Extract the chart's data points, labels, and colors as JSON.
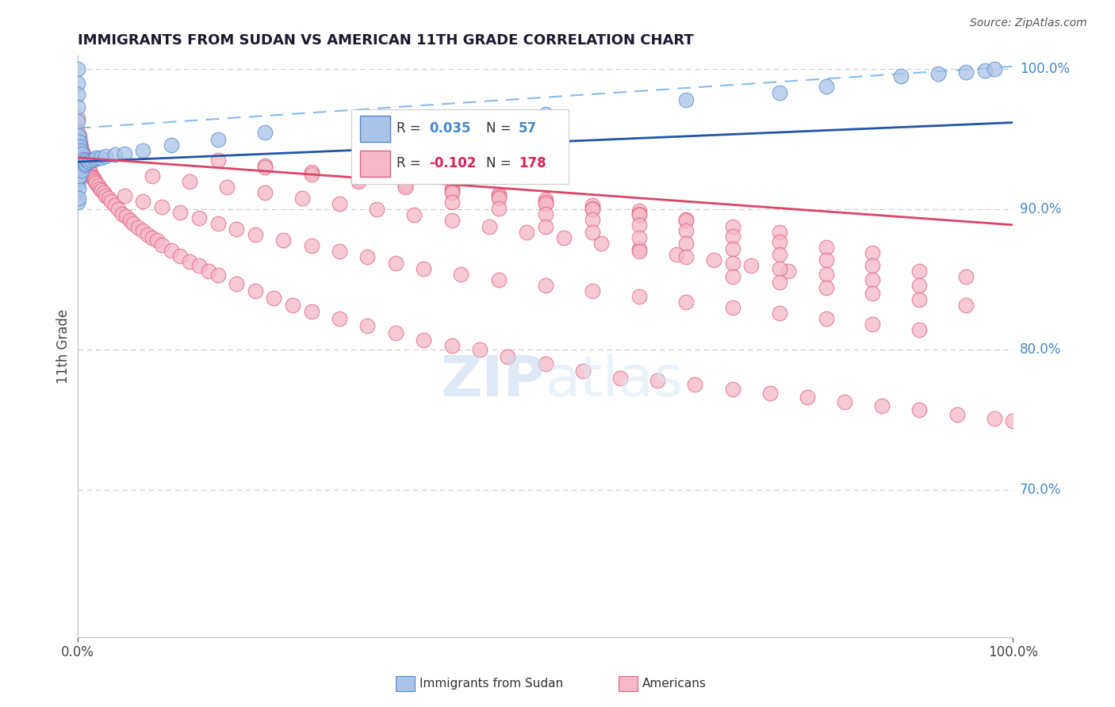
{
  "title": "IMMIGRANTS FROM SUDAN VS AMERICAN 11TH GRADE CORRELATION CHART",
  "source": "Source: ZipAtlas.com",
  "ylabel": "11th Grade",
  "xlim": [
    0.0,
    1.0
  ],
  "ylim": [
    0.595,
    1.01
  ],
  "color_blue": "#aac4e8",
  "color_blue_edge": "#5588cc",
  "color_pink": "#f5b8c8",
  "color_pink_edge": "#e06080",
  "color_trendline_blue": "#2255aa",
  "color_trendline_pink": "#dd4466",
  "color_dashed_blue": "#88bbee",
  "color_axis_labels": "#4488cc",
  "grid_color": "#cccccc",
  "watermark_color": "#d0e4f4",
  "blue_slope": 0.028,
  "blue_intercept": 0.934,
  "pink_slope": -0.048,
  "pink_intercept": 0.937,
  "blue_x": [
    0.0,
    0.0,
    0.0,
    0.0,
    0.0,
    0.0,
    0.0,
    0.0,
    0.0,
    0.0,
    0.001,
    0.001,
    0.001,
    0.001,
    0.001,
    0.001,
    0.001,
    0.002,
    0.002,
    0.002,
    0.002,
    0.003,
    0.003,
    0.003,
    0.004,
    0.004,
    0.005,
    0.005,
    0.005,
    0.006,
    0.007,
    0.008,
    0.009,
    0.01,
    0.012,
    0.015,
    0.018,
    0.02,
    0.025,
    0.03,
    0.04,
    0.05,
    0.07,
    0.1,
    0.15,
    0.2,
    0.35,
    0.5,
    0.65,
    0.75,
    0.8,
    0.88,
    0.92,
    0.95,
    0.97,
    0.98
  ],
  "blue_y": [
    1.0,
    0.99,
    0.982,
    0.973,
    0.963,
    0.953,
    0.942,
    0.93,
    0.918,
    0.905,
    0.953,
    0.945,
    0.938,
    0.93,
    0.922,
    0.915,
    0.908,
    0.948,
    0.94,
    0.932,
    0.924,
    0.945,
    0.938,
    0.93,
    0.942,
    0.935,
    0.94,
    0.934,
    0.928,
    0.936,
    0.934,
    0.932,
    0.933,
    0.935,
    0.934,
    0.935,
    0.936,
    0.937,
    0.937,
    0.938,
    0.939,
    0.94,
    0.942,
    0.946,
    0.95,
    0.955,
    0.963,
    0.968,
    0.978,
    0.983,
    0.988,
    0.995,
    0.997,
    0.998,
    0.999,
    1.0
  ],
  "pink_x": [
    0.0,
    0.0,
    0.0,
    0.0,
    0.0,
    0.002,
    0.003,
    0.004,
    0.005,
    0.006,
    0.007,
    0.008,
    0.009,
    0.01,
    0.011,
    0.012,
    0.013,
    0.014,
    0.015,
    0.016,
    0.017,
    0.018,
    0.019,
    0.02,
    0.022,
    0.024,
    0.026,
    0.028,
    0.03,
    0.033,
    0.036,
    0.04,
    0.044,
    0.048,
    0.052,
    0.056,
    0.06,
    0.065,
    0.07,
    0.075,
    0.08,
    0.085,
    0.09,
    0.1,
    0.11,
    0.12,
    0.13,
    0.14,
    0.15,
    0.17,
    0.19,
    0.21,
    0.23,
    0.25,
    0.28,
    0.31,
    0.34,
    0.37,
    0.4,
    0.43,
    0.46,
    0.5,
    0.54,
    0.58,
    0.62,
    0.66,
    0.7,
    0.74,
    0.78,
    0.82,
    0.86,
    0.9,
    0.94,
    0.98,
    1.0,
    0.05,
    0.07,
    0.09,
    0.11,
    0.13,
    0.15,
    0.17,
    0.19,
    0.22,
    0.25,
    0.28,
    0.31,
    0.34,
    0.37,
    0.41,
    0.45,
    0.5,
    0.55,
    0.6,
    0.65,
    0.7,
    0.75,
    0.8,
    0.85,
    0.9,
    0.08,
    0.12,
    0.16,
    0.2,
    0.24,
    0.28,
    0.32,
    0.36,
    0.4,
    0.44,
    0.48,
    0.52,
    0.56,
    0.6,
    0.64,
    0.68,
    0.72,
    0.76,
    0.15,
    0.2,
    0.25,
    0.3,
    0.35,
    0.4,
    0.45,
    0.5,
    0.55,
    0.6,
    0.2,
    0.25,
    0.3,
    0.35,
    0.4,
    0.45,
    0.5,
    0.55,
    0.6,
    0.65,
    0.3,
    0.35,
    0.4,
    0.45,
    0.5,
    0.55,
    0.6,
    0.65,
    0.7,
    0.75,
    0.4,
    0.45,
    0.5,
    0.55,
    0.6,
    0.65,
    0.7,
    0.75,
    0.8,
    0.85,
    0.5,
    0.55,
    0.6,
    0.65,
    0.7,
    0.75,
    0.8,
    0.85,
    0.9,
    0.95,
    0.6,
    0.65,
    0.7,
    0.75,
    0.8,
    0.85,
    0.9,
    0.7,
    0.75,
    0.8,
    0.85,
    0.9,
    0.95
  ],
  "pink_y": [
    0.965,
    0.955,
    0.944,
    0.934,
    0.922,
    0.952,
    0.948,
    0.945,
    0.942,
    0.94,
    0.938,
    0.936,
    0.934,
    0.932,
    0.93,
    0.929,
    0.927,
    0.926,
    0.924,
    0.923,
    0.922,
    0.921,
    0.92,
    0.919,
    0.917,
    0.915,
    0.914,
    0.912,
    0.91,
    0.908,
    0.906,
    0.903,
    0.9,
    0.897,
    0.895,
    0.892,
    0.89,
    0.887,
    0.885,
    0.882,
    0.88,
    0.878,
    0.875,
    0.871,
    0.867,
    0.863,
    0.86,
    0.856,
    0.853,
    0.847,
    0.842,
    0.837,
    0.832,
    0.827,
    0.822,
    0.817,
    0.812,
    0.807,
    0.803,
    0.8,
    0.795,
    0.79,
    0.785,
    0.78,
    0.778,
    0.775,
    0.772,
    0.769,
    0.766,
    0.763,
    0.76,
    0.757,
    0.754,
    0.751,
    0.749,
    0.91,
    0.906,
    0.902,
    0.898,
    0.894,
    0.89,
    0.886,
    0.882,
    0.878,
    0.874,
    0.87,
    0.866,
    0.862,
    0.858,
    0.854,
    0.85,
    0.846,
    0.842,
    0.838,
    0.834,
    0.83,
    0.826,
    0.822,
    0.818,
    0.814,
    0.924,
    0.92,
    0.916,
    0.912,
    0.908,
    0.904,
    0.9,
    0.896,
    0.892,
    0.888,
    0.884,
    0.88,
    0.876,
    0.872,
    0.868,
    0.864,
    0.86,
    0.856,
    0.935,
    0.931,
    0.927,
    0.923,
    0.919,
    0.915,
    0.911,
    0.907,
    0.903,
    0.899,
    0.93,
    0.925,
    0.921,
    0.917,
    0.913,
    0.909,
    0.905,
    0.901,
    0.897,
    0.893,
    0.92,
    0.916,
    0.912,
    0.908,
    0.904,
    0.9,
    0.896,
    0.892,
    0.888,
    0.884,
    0.905,
    0.901,
    0.897,
    0.893,
    0.889,
    0.885,
    0.881,
    0.877,
    0.873,
    0.869,
    0.888,
    0.884,
    0.88,
    0.876,
    0.872,
    0.868,
    0.864,
    0.86,
    0.856,
    0.852,
    0.87,
    0.866,
    0.862,
    0.858,
    0.854,
    0.85,
    0.846,
    0.852,
    0.848,
    0.844,
    0.84,
    0.836,
    0.832
  ]
}
